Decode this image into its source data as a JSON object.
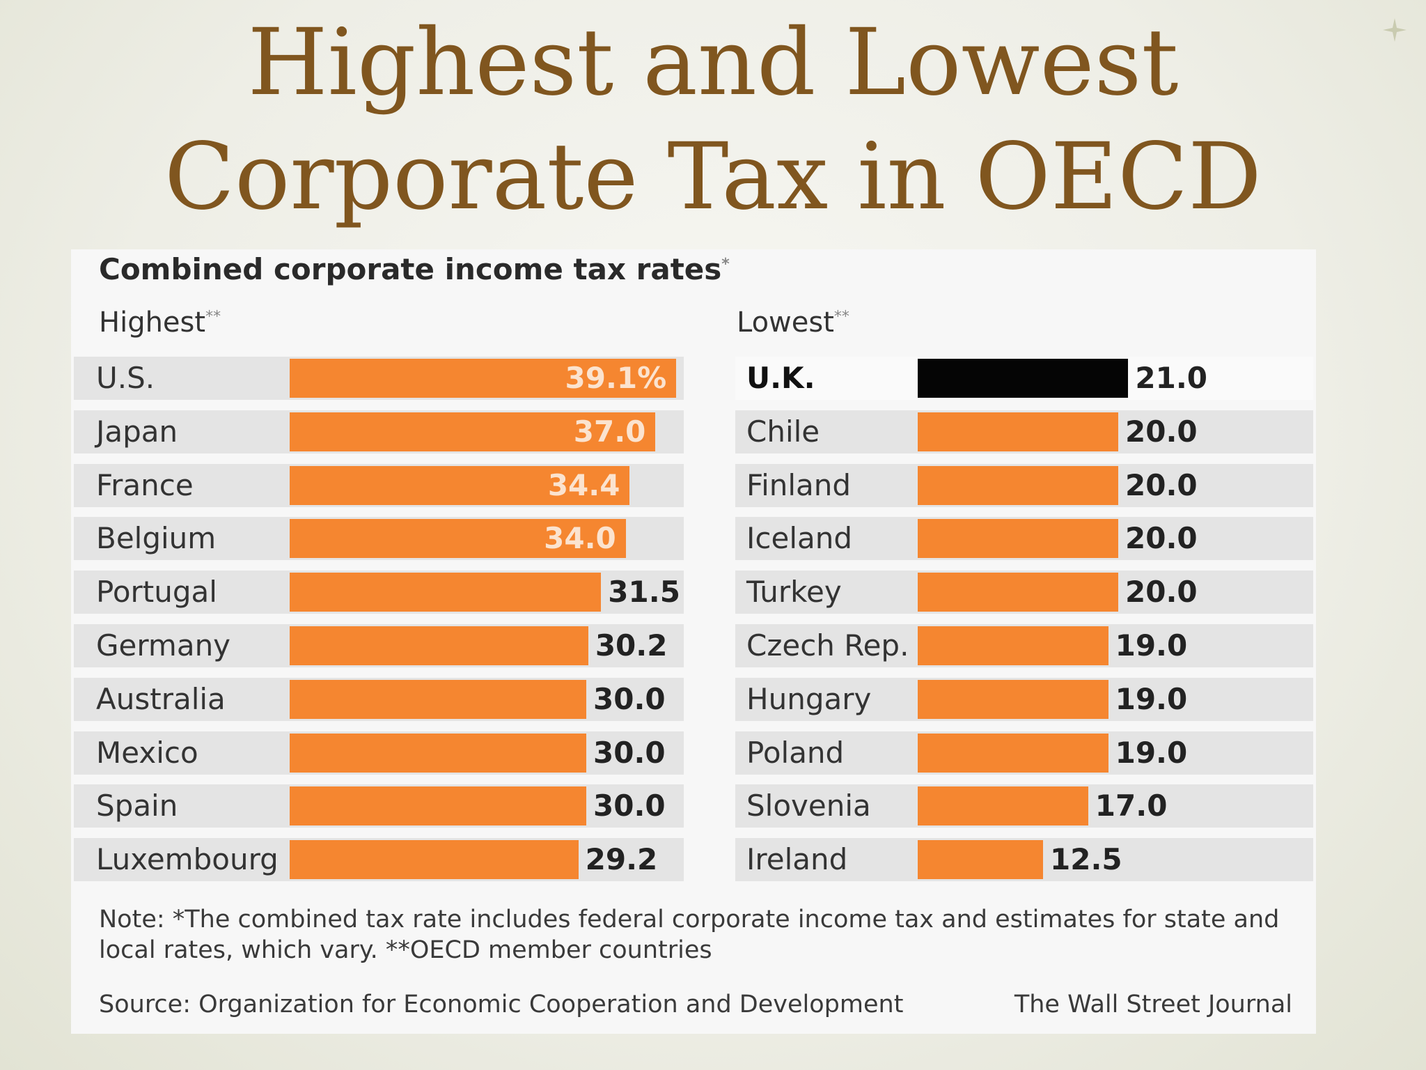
{
  "slide": {
    "title_line1": "Highest and Lowest",
    "title_line2": "Corporate Tax in OECD",
    "accent_color": "#80561f"
  },
  "chart_data": {
    "type": "bar",
    "title": "Combined corporate income tax rates",
    "title_marker": "*",
    "bar_color": "#f58630",
    "highlight_color": "#050505",
    "groups": [
      {
        "name": "Highest",
        "marker": "**",
        "categories": [
          "U.S.",
          "Japan",
          "France",
          "Belgium",
          "Portugal",
          "Germany",
          "Australia",
          "Mexico",
          "Spain",
          "Luxembourg"
        ],
        "values": [
          39.1,
          37.0,
          34.4,
          34.0,
          31.5,
          30.2,
          30.0,
          30.0,
          30.0,
          29.2
        ],
        "value_labels": [
          "39.1%",
          "37.0",
          "34.4",
          "34.0",
          "31.5",
          "30.2",
          "30.0",
          "30.0",
          "30.0",
          "29.2"
        ]
      },
      {
        "name": "Lowest",
        "marker": "**",
        "categories": [
          "U.K.",
          "Chile",
          "Finland",
          "Iceland",
          "Turkey",
          "Czech Rep.",
          "Hungary",
          "Poland",
          "Slovenia",
          "Ireland"
        ],
        "values": [
          21.0,
          20.0,
          20.0,
          20.0,
          20.0,
          19.0,
          19.0,
          19.0,
          17.0,
          12.5
        ],
        "value_labels": [
          "21.0",
          "20.0",
          "20.0",
          "20.0",
          "20.0",
          "19.0",
          "19.0",
          "19.0",
          "17.0",
          "12.5"
        ],
        "highlighted_category": "U.K."
      }
    ],
    "note": "Note: *The combined tax rate includes federal corporate income tax and estimates for state and local rates, which vary. **OECD member countries",
    "source": "Source: Organization for Economic Cooperation and Development",
    "credit": "The Wall Street Journal"
  }
}
